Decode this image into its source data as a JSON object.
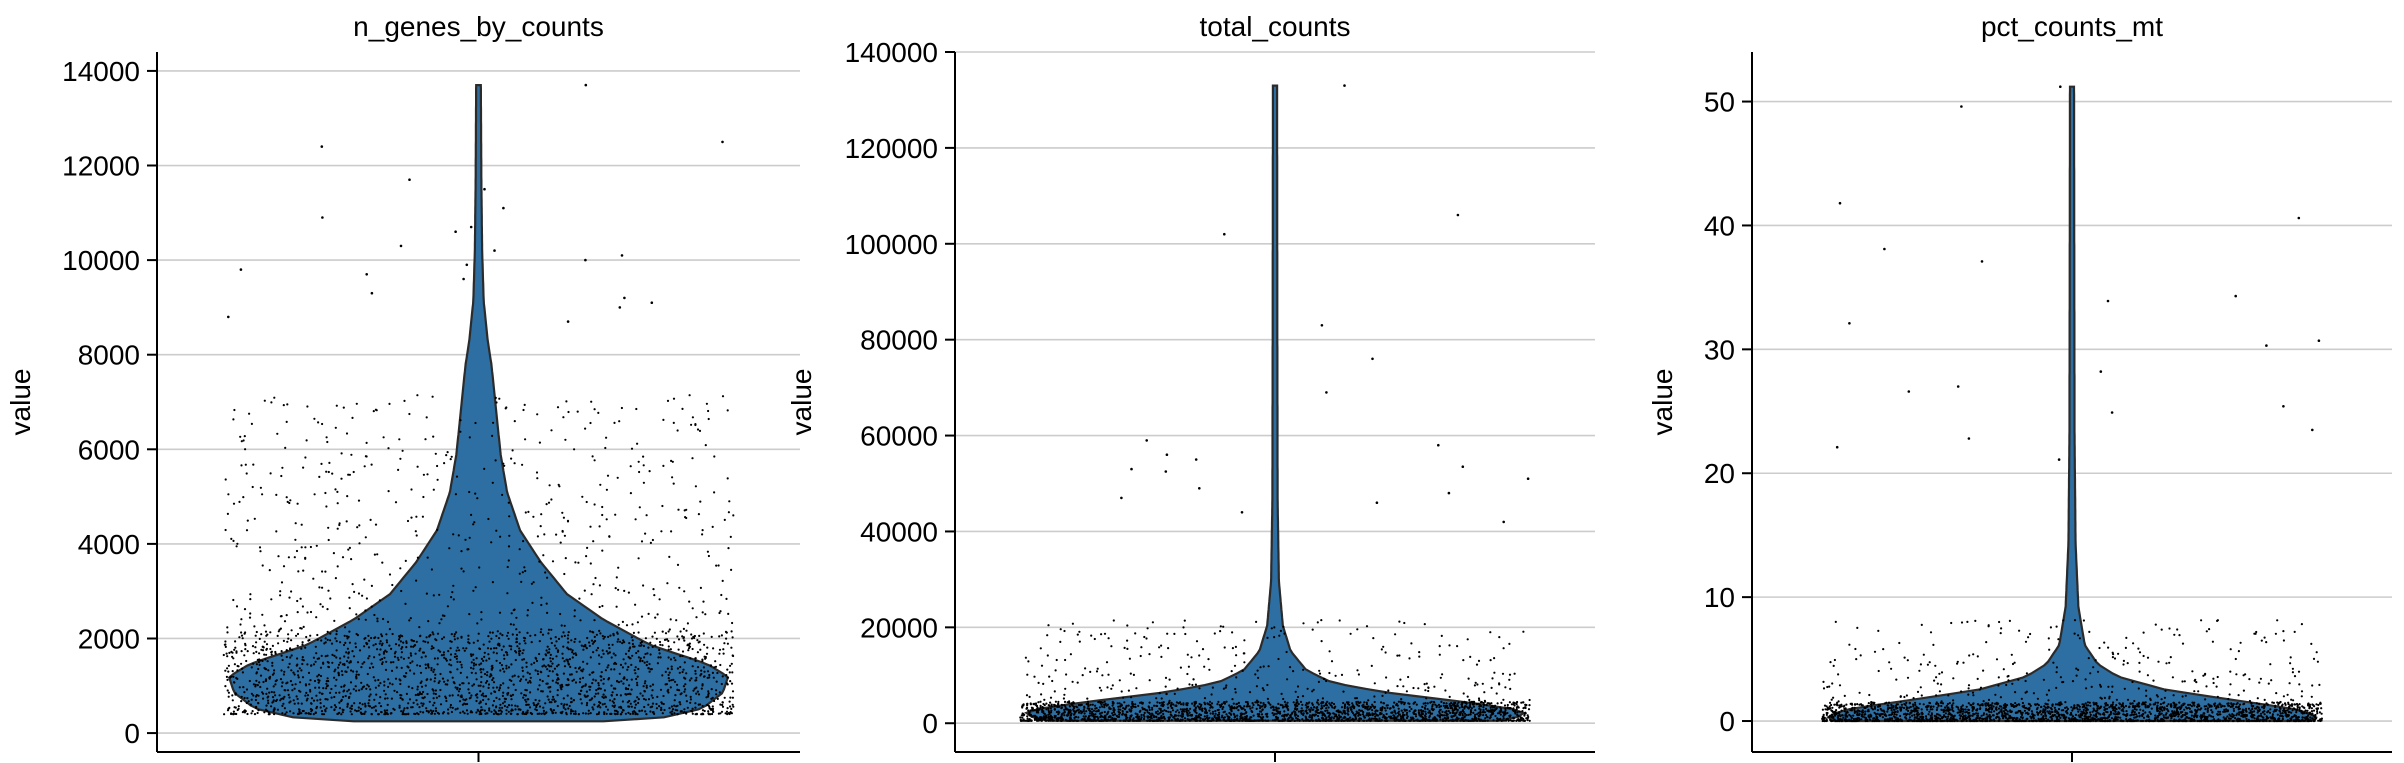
{
  "colors": {
    "violin_fill": "#2d6fa2",
    "violin_edge": "#2b2b2b",
    "points": "#000000",
    "grid": "#cccccc",
    "axis": "#000000",
    "text": "#000000"
  },
  "chart_data": [
    {
      "type": "violin",
      "title": "n_genes_by_counts",
      "ylabel": "value",
      "xlabel": "",
      "ylim": [
        -400,
        14400
      ],
      "yticks": [
        0,
        2000,
        4000,
        6000,
        8000,
        10000,
        12000,
        14000
      ],
      "ytick_labels": [
        "0",
        "2000",
        "4000",
        "6000",
        "8000",
        "10000",
        "12000",
        "14000"
      ],
      "grid": true,
      "stripplot": true,
      "distribution": {
        "min": 250,
        "median": 1400,
        "q3": 2000,
        "max": 13700
      },
      "outliers": [
        13700,
        12500,
        12400,
        11700,
        11500,
        11100,
        10900,
        10700,
        10600,
        10300,
        10200,
        10100,
        10000,
        9900,
        9800,
        9700,
        9600,
        9300,
        9200,
        9100,
        9000,
        8800,
        8700
      ]
    },
    {
      "type": "violin",
      "title": "total_counts",
      "ylabel": "value",
      "xlabel": "",
      "ylim": [
        -6000,
        140000
      ],
      "yticks": [
        0,
        20000,
        40000,
        60000,
        80000,
        100000,
        120000,
        140000
      ],
      "ytick_labels": [
        "0",
        "20000",
        "40000",
        "60000",
        "80000",
        "100000",
        "120000",
        "140000"
      ],
      "grid": true,
      "stripplot": true,
      "distribution": {
        "min": 500,
        "median": 2500,
        "q3": 4500,
        "max": 133000
      },
      "outliers": [
        133000,
        106000,
        102000,
        83000,
        76000,
        69000,
        59000,
        58000,
        56000,
        55000,
        53500,
        53000,
        52500,
        51000,
        49000,
        48000,
        47000,
        46000,
        44000,
        42000
      ]
    },
    {
      "type": "violin",
      "title": "pct_counts_mt",
      "ylabel": "value",
      "xlabel": "",
      "ylim": [
        -2.5,
        54
      ],
      "yticks": [
        0,
        10,
        20,
        30,
        40,
        50
      ],
      "ytick_labels": [
        "0",
        "10",
        "20",
        "30",
        "40",
        "50"
      ],
      "grid": true,
      "stripplot": true,
      "distribution": {
        "min": 0,
        "median": 0.5,
        "q3": 1.5,
        "max": 51.2
      },
      "outliers": [
        51.2,
        49.6,
        41.8,
        40.6,
        38.1,
        37.1,
        34.3,
        33.9,
        32.1,
        30.7,
        30.3,
        28.2,
        27.0,
        26.6,
        25.4,
        24.9,
        23.5,
        22.8,
        22.1,
        21.1
      ]
    }
  ]
}
